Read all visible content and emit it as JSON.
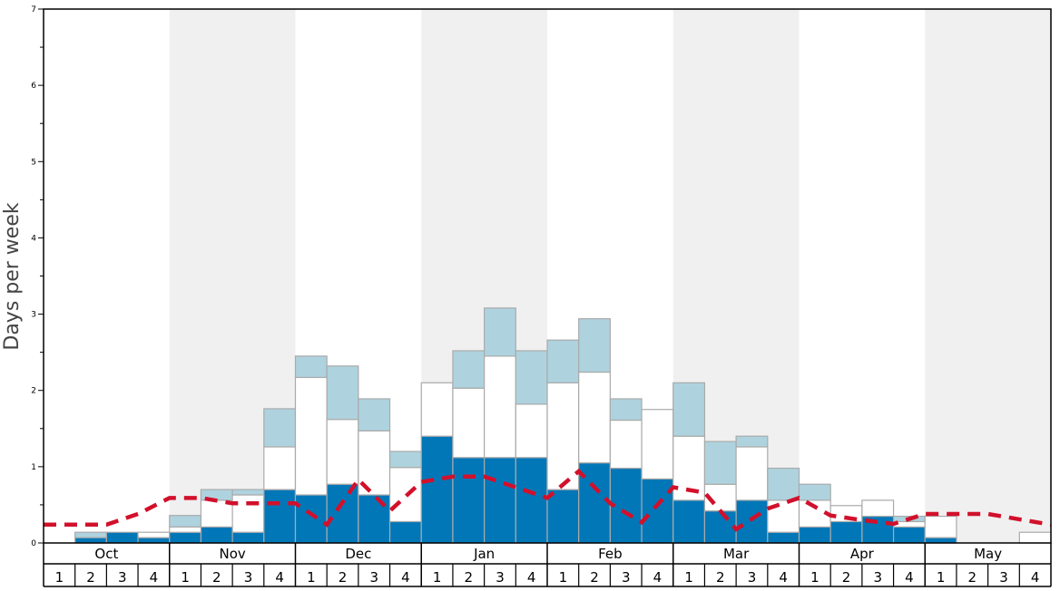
{
  "chart_data": {
    "type": "bar",
    "stacked": true,
    "ylabel": "Days per week",
    "ylim": [
      0,
      7
    ],
    "yticks": [
      0,
      1,
      2,
      3,
      4,
      5,
      6,
      7
    ],
    "months": [
      "Oct",
      "Nov",
      "Dec",
      "Jan",
      "Feb",
      "Mar",
      "Apr",
      "May"
    ],
    "weeks_per_month": [
      "1",
      "2",
      "3",
      "4"
    ],
    "shaded_months": [
      "Nov",
      "Jan",
      "Mar",
      "May"
    ],
    "colors": {
      "dark": "#0277b8",
      "mid": "#ffffff",
      "light": "#aed3df",
      "line": "#d2102b",
      "shade": "#f0f0f0"
    },
    "series": [
      {
        "name": "dark",
        "values": [
          0,
          0.07,
          0.14,
          0.07,
          0.14,
          0.21,
          0.14,
          0.7,
          0.63,
          0.77,
          0.63,
          0.28,
          1.4,
          1.12,
          1.12,
          1.12,
          0.7,
          1.05,
          0.98,
          0.84,
          0.56,
          0.42,
          0.56,
          0.14,
          0.21,
          0.28,
          0.35,
          0.21,
          0.07,
          0,
          0,
          0
        ]
      },
      {
        "name": "mid",
        "values": [
          0,
          0,
          0,
          0.07,
          0.07,
          0.35,
          0.49,
          0.56,
          1.54,
          0.85,
          0.84,
          0.71,
          0.7,
          0.91,
          1.33,
          0.7,
          1.4,
          1.19,
          0.63,
          0.91,
          0.84,
          0.35,
          0.7,
          0.42,
          0.35,
          0.21,
          0.21,
          0.07,
          0.28,
          0,
          0,
          0.14
        ]
      },
      {
        "name": "light",
        "values": [
          0,
          0.07,
          0,
          0,
          0.15,
          0.14,
          0.07,
          0.5,
          0.28,
          0.7,
          0.42,
          0.21,
          0,
          0.49,
          0.63,
          0.7,
          0.56,
          0.7,
          0.28,
          0,
          0.7,
          0.56,
          0.14,
          0.42,
          0.21,
          0,
          0,
          0.07,
          0,
          0,
          0,
          0
        ]
      }
    ],
    "average_line": {
      "name": "average",
      "style": "dashed",
      "values_at_week_boundaries": [
        0.24,
        0.24,
        0.24,
        0.38,
        0.59,
        0.59,
        0.52,
        0.52,
        0.52,
        0.24,
        0.83,
        0.42,
        0.8,
        0.87,
        0.87,
        0.73,
        0.59,
        0.94,
        0.52,
        0.27,
        0.73,
        0.66,
        0.18,
        0.45,
        0.59,
        0.36,
        0.3,
        0.25,
        0.38,
        0.38,
        0.38,
        0.31,
        0.24
      ]
    }
  }
}
